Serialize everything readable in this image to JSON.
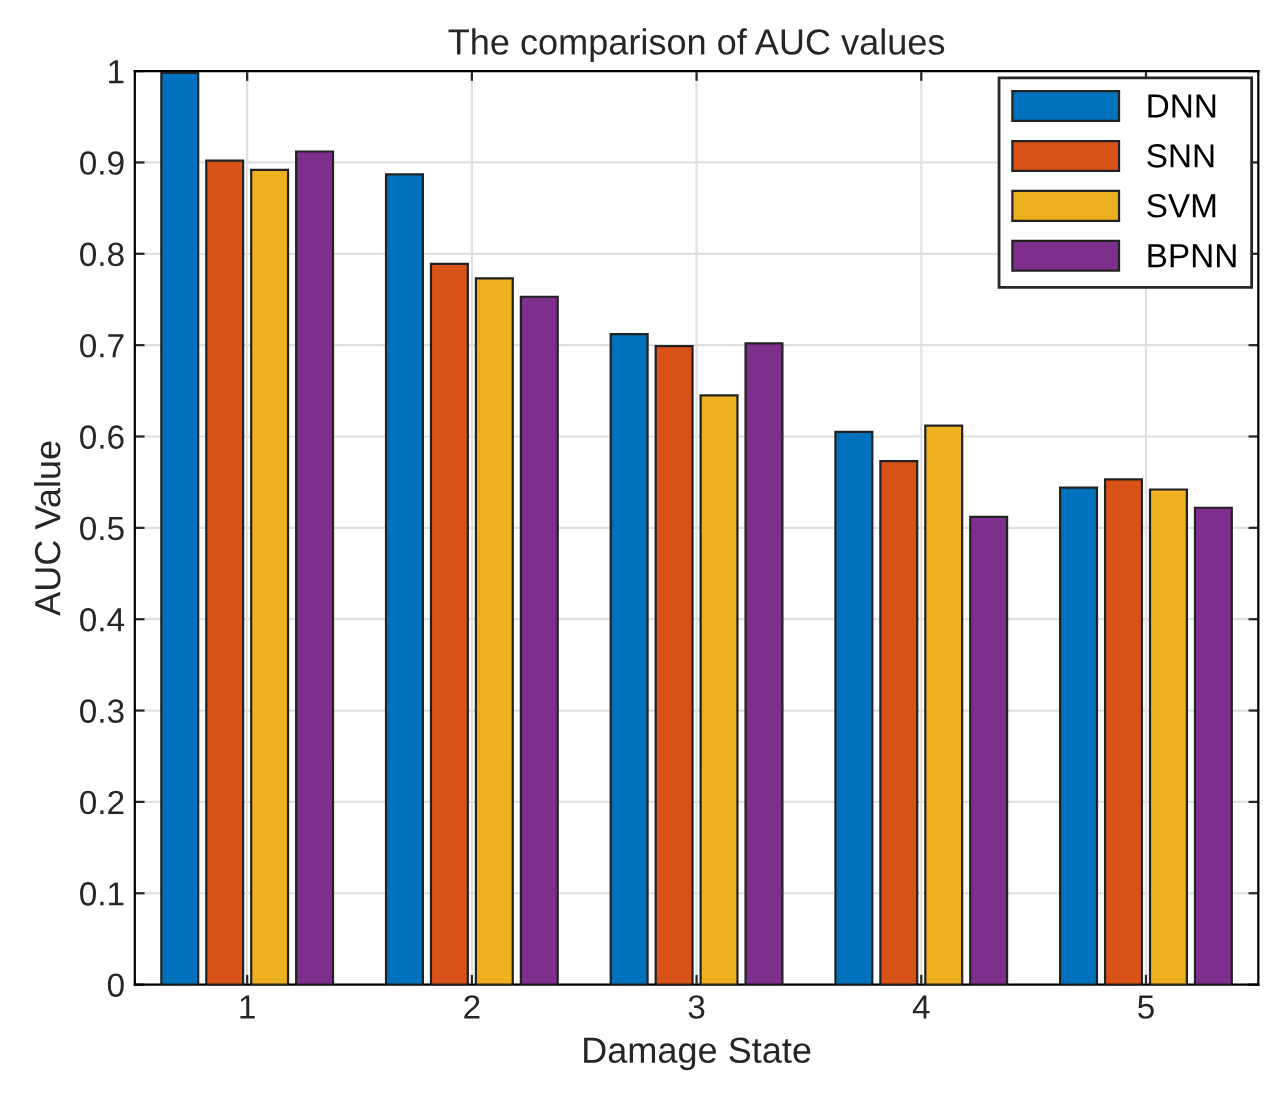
{
  "chart_data": {
    "type": "bar",
    "title": "The comparison of AUC values",
    "xlabel": "Damage State",
    "ylabel": "AUC Value",
    "categories": [
      "1",
      "2",
      "3",
      "4",
      "5"
    ],
    "series": [
      {
        "name": "DNN",
        "color": "#0072bd",
        "values": [
          0.998,
          0.887,
          0.712,
          0.605,
          0.544
        ]
      },
      {
        "name": "SNN",
        "color": "#d95319",
        "values": [
          0.902,
          0.789,
          0.699,
          0.573,
          0.553
        ]
      },
      {
        "name": "SVM",
        "color": "#edb120",
        "values": [
          0.892,
          0.773,
          0.645,
          0.612,
          0.542
        ]
      },
      {
        "name": "BPNN",
        "color": "#7e2f8e",
        "values": [
          0.912,
          0.753,
          0.702,
          0.512,
          0.522
        ]
      }
    ],
    "ylim": [
      0,
      1
    ],
    "yticks": [
      0,
      0.1,
      0.2,
      0.3,
      0.4,
      0.5,
      0.6,
      0.7,
      0.8,
      0.9,
      1
    ],
    "grid": true,
    "legend": "top right"
  }
}
